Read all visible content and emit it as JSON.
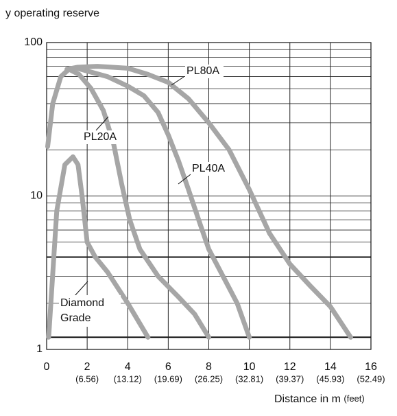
{
  "chart_data": {
    "type": "line",
    "y_label": "y operating reserve",
    "x_label": "Distance in m",
    "x_label_unit": "(feet)",
    "xlim": [
      0,
      16
    ],
    "xticks": [
      0,
      2,
      4,
      6,
      8,
      10,
      12,
      14,
      16
    ],
    "xticks_secondary_labels": [
      null,
      "(6.56)",
      "(13.12)",
      "(19.69)",
      "(26.25)",
      "(32.81)",
      "(39.37)",
      "(45.93)",
      "(52.49)"
    ],
    "ylim": [
      1,
      100
    ],
    "yscale": "log",
    "yticks": [
      1,
      10,
      100
    ],
    "minor_yticks": [
      2,
      3,
      4,
      5,
      6,
      7,
      8,
      9,
      20,
      30,
      40,
      50,
      60,
      70,
      80,
      90
    ],
    "reference_lines": [
      1.2,
      4
    ],
    "grid": true,
    "series": [
      {
        "name": "PL80A",
        "color": "#a6a6a6",
        "x": [
          1.0,
          1.5,
          2.5,
          4,
          5,
          6,
          7,
          8,
          9,
          10,
          11,
          12,
          13,
          14,
          15
        ],
        "values": [
          67,
          69,
          70,
          68,
          62,
          55,
          43,
          30,
          20,
          11,
          5.7,
          3.6,
          2.6,
          1.9,
          1.2
        ]
      },
      {
        "name": "PL20A",
        "color": "#a6a6a6",
        "x": [
          0.05,
          0.3,
          0.7,
          1.1,
          1.6,
          2.2,
          2.8,
          3.3,
          3.7,
          4.1,
          4.6,
          5.5,
          6.5,
          7.3,
          8
        ],
        "values": [
          21,
          40,
          60,
          67,
          62,
          50,
          36,
          22,
          12,
          7,
          4.5,
          3,
          2.2,
          1.7,
          1.2
        ]
      },
      {
        "name": "PL40A",
        "color": "#a6a6a6",
        "x": [
          1.5,
          3,
          4,
          4.8,
          5.5,
          6,
          6.5,
          7,
          7.5,
          8,
          8.7,
          9.4,
          10
        ],
        "values": [
          68,
          60,
          52,
          45,
          35,
          25,
          17,
          11,
          7,
          4.5,
          3,
          2,
          1.2
        ]
      },
      {
        "name": "Diamond Grade",
        "color": "#a6a6a6",
        "x": [
          0.1,
          0.5,
          0.9,
          1.3,
          1.55,
          1.75,
          2.0,
          2.4,
          3,
          4,
          5
        ],
        "values": [
          1.2,
          8,
          16,
          18,
          16,
          10,
          5,
          4,
          3.2,
          2,
          1.2
        ]
      }
    ]
  }
}
